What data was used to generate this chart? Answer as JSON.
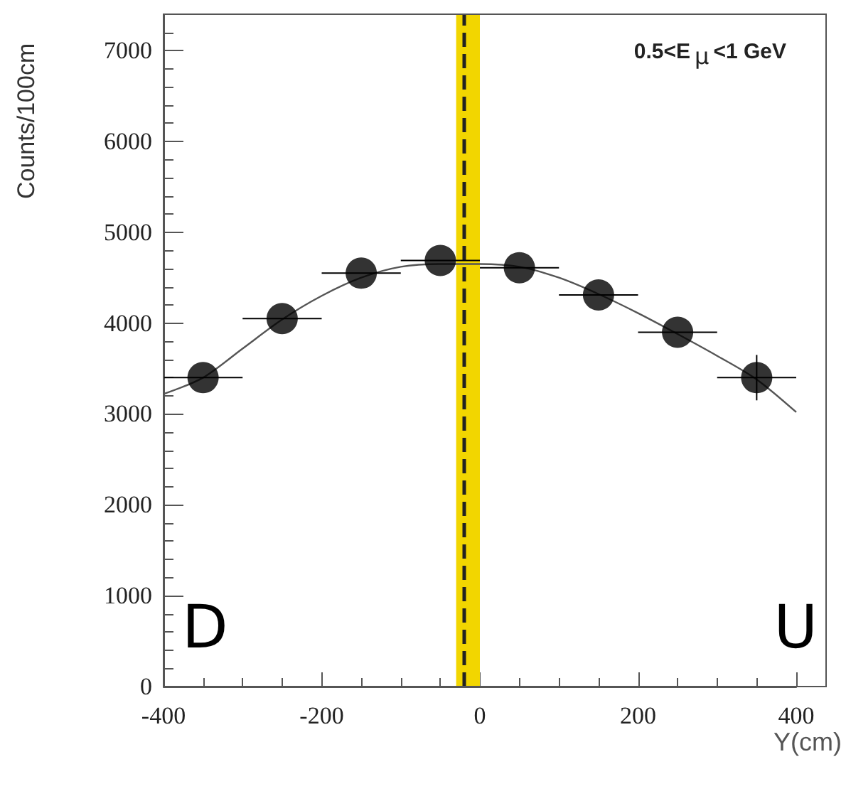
{
  "chart_data": {
    "type": "scatter",
    "xlabel": "Y(cm)",
    "ylabel": "Counts/100cm",
    "annotations": [
      "0.5<E$_{μ}$<1 GeV",
      "D",
      "U"
    ],
    "x": [
      -350,
      -250,
      -150,
      -50,
      50,
      150,
      250,
      350
    ],
    "series": [
      {
        "color": "#000000",
        "marker": "circle",
        "values": [
          3400,
          4050,
          4550,
          4690,
          4610,
          4310,
          3900,
          3400
        ],
        "xerrors": [
          50,
          50,
          50,
          50,
          50,
          50,
          50,
          50
        ],
        "errors": [
          null,
          null,
          null,
          null,
          null,
          null,
          null,
          250
        ]
      },
      {
        "type": "line",
        "color": "#555555",
        "marker": "none",
        "x": [
          -400,
          -350,
          -300,
          -250,
          -200,
          -150,
          -100,
          -50,
          0,
          50,
          100,
          150,
          200,
          250,
          300,
          350,
          400
        ],
        "values": [
          3220,
          3400,
          3720,
          4040,
          4300,
          4500,
          4620,
          4650,
          4650,
          4620,
          4500,
          4320,
          4110,
          3880,
          3640,
          3380,
          3020
        ]
      }
    ],
    "bands": [
      {
        "axis": "x",
        "from": -30,
        "to": 0,
        "color": "#f2d600"
      }
    ],
    "ref_lines": [
      {
        "axis": "x",
        "value": -20,
        "color": "#222222",
        "line_style": "dashed"
      }
    ],
    "xlim": [
      -400,
      400
    ],
    "xticks": [
      -400,
      -200,
      0,
      200,
      400
    ],
    "ylim": [
      0,
      7400
    ],
    "yticks": [
      0,
      1000,
      2000,
      3000,
      4000,
      5000,
      6000,
      7000
    ]
  }
}
